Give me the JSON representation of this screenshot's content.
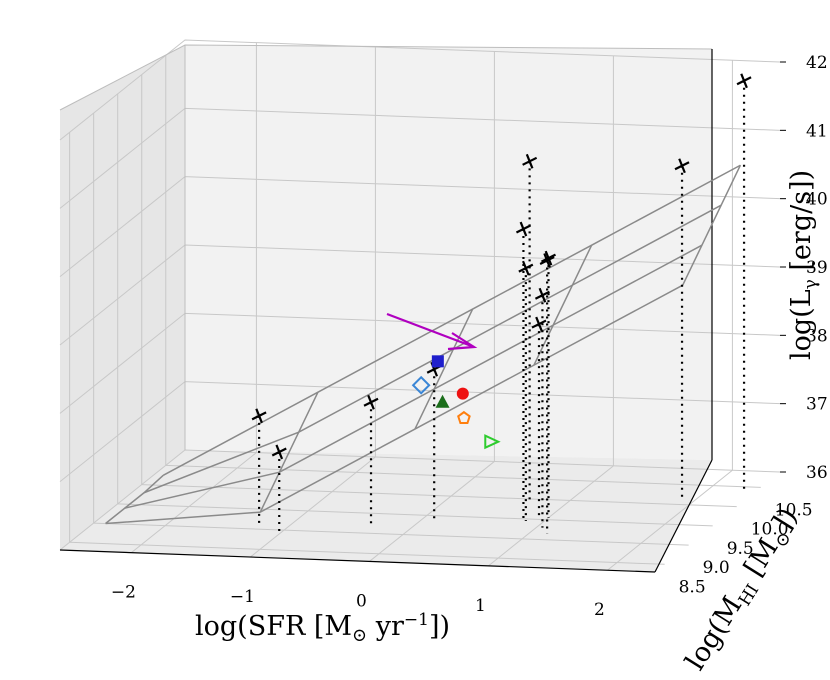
{
  "chart_data": {
    "type": "scatter3d",
    "axes": {
      "x": {
        "label_main": "log(SFR [M",
        "label_sun": "⊙",
        "label_mid": " yr",
        "label_sup": "−1",
        "label_end": "])",
        "ticks": [
          "−2",
          "−1",
          "0",
          "1",
          "2"
        ],
        "tick_values": [
          -2,
          -1,
          0,
          1,
          2
        ],
        "range": [
          -2.6,
          2.4
        ]
      },
      "y": {
        "label_main": "log(M",
        "label_sub": "HI",
        "label_mid": " [M",
        "label_sun": "⊙",
        "label_end": "])",
        "ticks": [
          "8.5",
          "9.0",
          "9.5",
          "10.0",
          "10.5"
        ],
        "tick_values": [
          8.5,
          9.0,
          9.5,
          10.0,
          10.5
        ],
        "range": [
          8.3,
          10.9
        ]
      },
      "z": {
        "label_main": "log(L",
        "label_sub": "γ",
        "label_end": " [erg/s])",
        "ticks": [
          "36",
          "37",
          "38",
          "39",
          "40",
          "41",
          "42"
        ],
        "tick_values": [
          36,
          37,
          38,
          39,
          40,
          41,
          42
        ],
        "range": [
          36,
          42
        ]
      }
    },
    "grid": true,
    "plane": {
      "description": "fitted regression plane",
      "color": "#888888"
    },
    "detections": [
      {
        "sfr": -1.25,
        "mhi": 9.1,
        "lgamma": 37.6
      },
      {
        "sfr": -1.0,
        "mhi": 8.9,
        "lgamma": 37.2
      },
      {
        "sfr": -0.35,
        "mhi": 9.2,
        "lgamma": 37.8
      },
      {
        "sfr": 0.1,
        "mhi": 9.4,
        "lgamma": 38.2
      },
      {
        "sfr": 0.7,
        "mhi": 9.9,
        "lgamma": 41.0
      },
      {
        "sfr": 0.85,
        "mhi": 9.4,
        "lgamma": 40.3
      },
      {
        "sfr": 0.85,
        "mhi": 9.45,
        "lgamma": 39.7
      },
      {
        "sfr": 0.9,
        "mhi": 9.6,
        "lgamma": 38.8
      },
      {
        "sfr": 1.0,
        "mhi": 9.55,
        "lgamma": 39.8
      },
      {
        "sfr": 1.05,
        "mhi": 9.3,
        "lgamma": 39.4
      },
      {
        "sfr": 1.15,
        "mhi": 9.15,
        "lgamma": 40.0
      },
      {
        "sfr": 1.9,
        "mhi": 10.1,
        "lgamma": 40.9
      },
      {
        "sfr": 2.3,
        "mhi": 10.4,
        "lgamma": 42.0
      }
    ],
    "other_sources": [
      {
        "marker": "square",
        "color": "#1f1fcc",
        "sfr": 0.05,
        "mhi": 9.6,
        "lgamma": 38.2
      },
      {
        "marker": "diamond",
        "color": "#3a86d6",
        "sfr": -0.05,
        "mhi": 9.5,
        "lgamma": 37.9
      },
      {
        "marker": "triangle",
        "color": "#1b6e1b",
        "sfr": 0.15,
        "mhi": 9.45,
        "lgamma": 37.7
      },
      {
        "marker": "circle",
        "color": "#ee1111",
        "sfr": 0.3,
        "mhi": 9.5,
        "lgamma": 37.8
      },
      {
        "marker": "pentagon",
        "color": "#ff7f0e",
        "sfr": 0.35,
        "mhi": 9.4,
        "lgamma": 37.5
      },
      {
        "marker": "triangle-right",
        "color": "#2ecc2e",
        "sfr": 0.6,
        "mhi": 9.35,
        "lgamma": 37.2
      }
    ],
    "arrow": {
      "color": "#b000c0"
    }
  }
}
